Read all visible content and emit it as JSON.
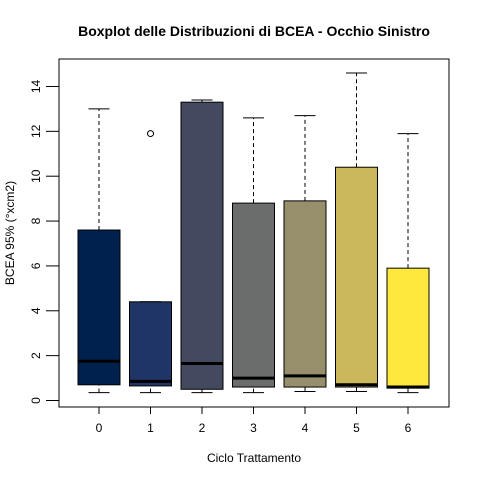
{
  "chart_data": {
    "type": "boxplot",
    "title": "Boxplot delle Distribuzioni di BCEA - Occhio Sinistro",
    "xlabel": "Ciclo Trattamento",
    "ylabel": "BCEA 95% (°xcm2)",
    "categories": [
      "0",
      "1",
      "2",
      "3",
      "4",
      "5",
      "6"
    ],
    "y_ticks": [
      "0",
      "2",
      "4",
      "6",
      "8",
      "10",
      "12",
      "14"
    ],
    "ylim": [
      0,
      14.6
    ],
    "boxes": [
      {
        "category": "0",
        "whisker_low": 0.35,
        "q1": 0.7,
        "median": 1.75,
        "q3": 7.6,
        "whisker_high": 13.0,
        "outliers": [],
        "color": "#00204D"
      },
      {
        "category": "1",
        "whisker_low": 0.35,
        "q1": 0.65,
        "median": 0.85,
        "q3": 4.4,
        "whisker_high": 4.4,
        "outliers": [
          11.9
        ],
        "color": "#1F3467"
      },
      {
        "category": "2",
        "whisker_low": 0.35,
        "q1": 0.5,
        "median": 1.65,
        "q3": 13.3,
        "whisker_high": 13.4,
        "outliers": [],
        "color": "#434A60"
      },
      {
        "category": "3",
        "whisker_low": 0.35,
        "q1": 0.6,
        "median": 1.0,
        "q3": 8.8,
        "whisker_high": 12.6,
        "outliers": [],
        "color": "#6B6D6C"
      },
      {
        "category": "4",
        "whisker_low": 0.4,
        "q1": 0.6,
        "median": 1.1,
        "q3": 8.9,
        "whisker_high": 12.7,
        "outliers": [],
        "color": "#978F6B"
      },
      {
        "category": "5",
        "whisker_low": 0.4,
        "q1": 0.6,
        "median": 0.7,
        "q3": 10.4,
        "whisker_high": 14.6,
        "outliers": [],
        "color": "#CAB85A"
      },
      {
        "category": "6",
        "whisker_low": 0.35,
        "q1": 0.55,
        "median": 0.6,
        "q3": 5.9,
        "whisker_high": 11.9,
        "outliers": [],
        "color": "#FFE83E"
      }
    ],
    "grid": false,
    "legend": "none"
  }
}
